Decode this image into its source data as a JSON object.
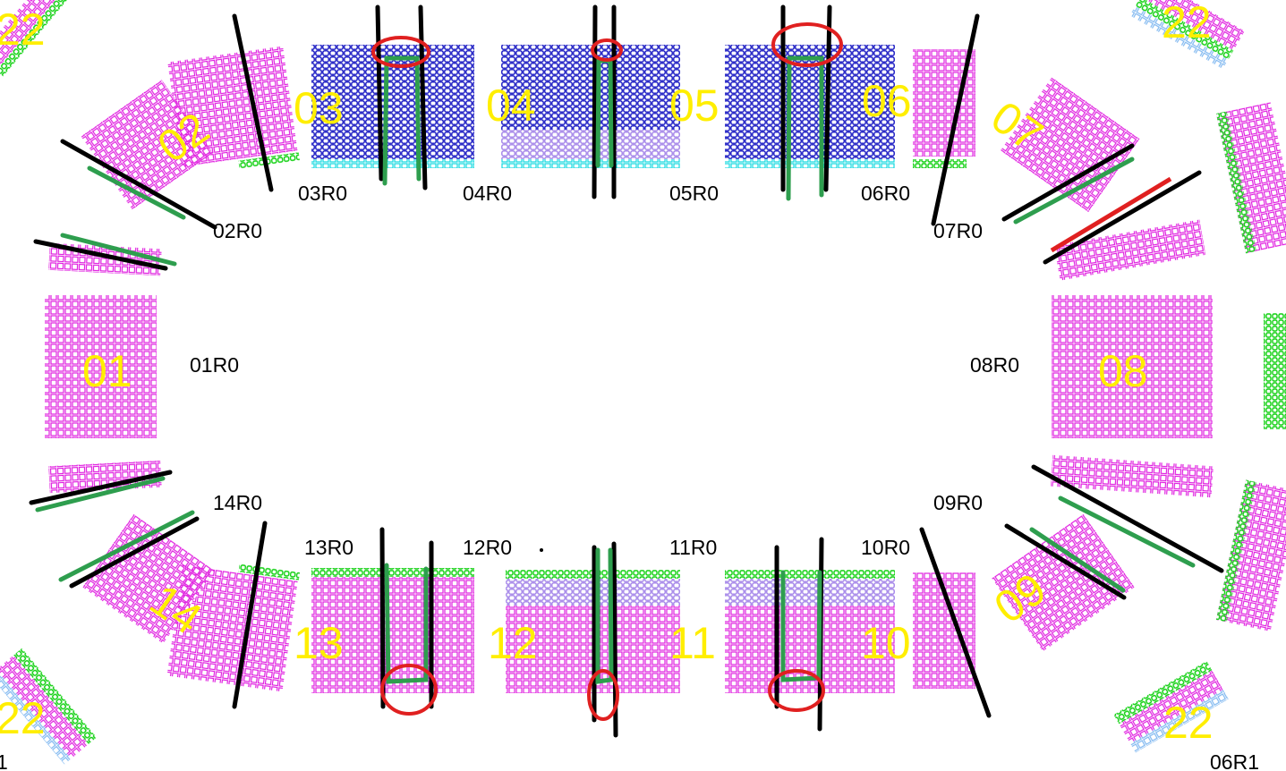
{
  "sections": [
    {
      "label": "03"
    },
    {
      "label": "04"
    },
    {
      "label": "05"
    },
    {
      "label": "06"
    },
    {
      "label": "07"
    },
    {
      "label": "02"
    },
    {
      "label": "01"
    },
    {
      "label": "08"
    },
    {
      "label": "14"
    },
    {
      "label": "13"
    },
    {
      "label": "12"
    },
    {
      "label": "11"
    },
    {
      "label": "10"
    },
    {
      "label": "09"
    },
    {
      "label": "22"
    },
    {
      "label": "22"
    },
    {
      "label": "22"
    },
    {
      "label": "22"
    }
  ],
  "row_labels": [
    "03R0",
    "04R0",
    "05R0",
    "06R0",
    "02R0",
    "07R0",
    "01R0",
    "08R0",
    "14R0",
    "09R0",
    "13R0",
    "12R0",
    "11R0",
    "10R0",
    "06R1",
    "1"
  ]
}
